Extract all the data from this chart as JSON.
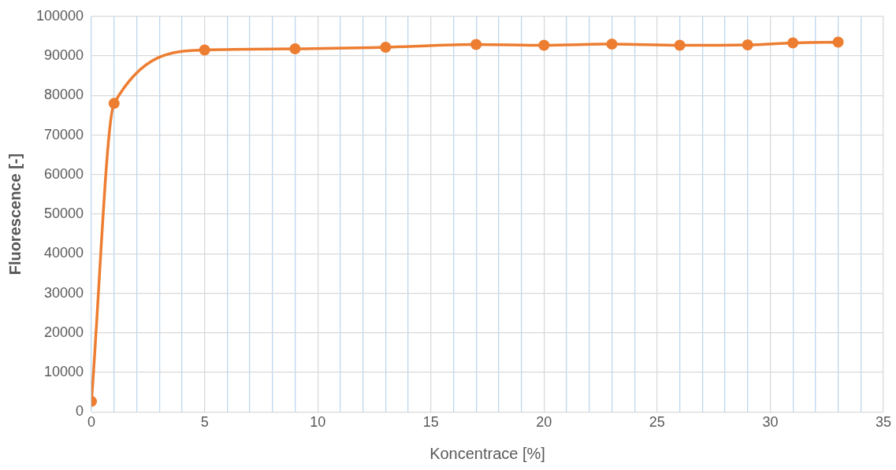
{
  "chart_data": {
    "type": "line",
    "xlabel": "Koncentrace [%]",
    "ylabel": "Fluorescence [-]",
    "x": [
      0,
      1,
      5,
      9,
      13,
      17,
      20,
      23,
      26,
      29,
      31,
      33
    ],
    "series": [
      {
        "color": "#ed7d31",
        "values": [
          2700,
          78000,
          91500,
          91800,
          92200,
          92900,
          92700,
          93000,
          92700,
          92800,
          93300,
          93500
        ]
      }
    ],
    "xlim": [
      0,
      35
    ],
    "xticks": [
      0,
      {
        "value": 1,
        "label": null
      },
      {
        "value": 2,
        "label": null
      },
      {
        "value": 3,
        "label": null
      },
      {
        "value": 4,
        "label": null
      },
      5,
      {
        "value": 6,
        "label": null
      },
      {
        "value": 7,
        "label": null
      },
      {
        "value": 8,
        "label": null
      },
      {
        "value": 9,
        "label": null
      },
      10,
      {
        "value": 11,
        "label": null
      },
      {
        "value": 12,
        "label": null
      },
      {
        "value": 13,
        "label": null
      },
      {
        "value": 14,
        "label": null
      },
      15,
      {
        "value": 16,
        "label": null
      },
      {
        "value": 17,
        "label": null
      },
      {
        "value": 18,
        "label": null
      },
      {
        "value": 19,
        "label": null
      },
      20,
      {
        "value": 21,
        "label": null
      },
      {
        "value": 22,
        "label": null
      },
      {
        "value": 23,
        "label": null
      },
      {
        "value": 24,
        "label": null
      },
      25,
      {
        "value": 26,
        "label": null
      },
      {
        "value": 27,
        "label": null
      },
      {
        "value": 28,
        "label": null
      },
      {
        "value": 29,
        "label": null
      },
      30,
      {
        "value": 31,
        "label": null
      },
      {
        "value": 32,
        "label": null
      },
      {
        "value": 33,
        "label": null
      },
      {
        "value": 34,
        "label": null
      },
      35
    ],
    "ylim": [
      0,
      100000
    ],
    "yticks": [
      0,
      10000,
      20000,
      30000,
      40000,
      50000,
      60000,
      70000,
      80000,
      90000,
      100000
    ],
    "grid": true,
    "legend": false,
    "marker": "circle",
    "line_style": "solid"
  }
}
